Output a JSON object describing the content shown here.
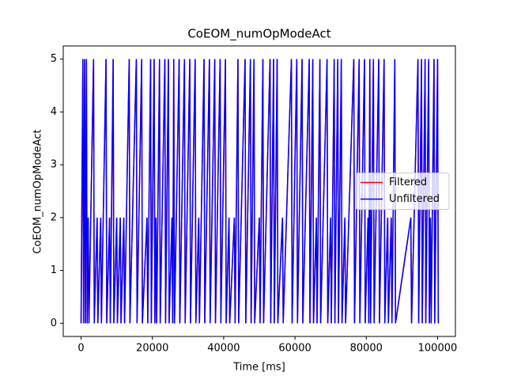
{
  "chart_data": {
    "type": "line",
    "title": "CoEOM_numOpModeAct",
    "x_label": "Time [ms]",
    "y_label": "CoEOM_numOpModeAct",
    "x": [
      0,
      500,
      700,
      1000,
      1200,
      1500,
      1700,
      2000,
      2200,
      3500,
      3700,
      4500,
      4700,
      5500,
      5700,
      7000,
      7200,
      8000,
      8200,
      9000,
      9200,
      10000,
      10200,
      11000,
      11200,
      12000,
      12200,
      13500,
      13700,
      15500,
      15700,
      17000,
      17200,
      18500,
      18700,
      19500,
      19700,
      20500,
      20700,
      21000,
      21200,
      22000,
      22200,
      23500,
      23700,
      24500,
      24700,
      25500,
      25700,
      26000,
      26200,
      27500,
      27700,
      29000,
      29200,
      30500,
      30700,
      32000,
      32200,
      33000,
      33200,
      34500,
      34700,
      36000,
      36200,
      37500,
      37700,
      39000,
      39200,
      40500,
      40700,
      41500,
      41700,
      43000,
      43200,
      44000,
      44200,
      46000,
      46200,
      47500,
      47700,
      48500,
      48700,
      50000,
      50200,
      51000,
      51200,
      53000,
      53200,
      54000,
      54200,
      55000,
      55200,
      56500,
      56700,
      59000,
      59200,
      60500,
      60700,
      62000,
      62200,
      64000,
      64200,
      65000,
      65200,
      66000,
      66200,
      67000,
      67200,
      69000,
      69200,
      70000,
      70200,
      71000,
      71200,
      72000,
      72200,
      73000,
      73200,
      74000,
      74200,
      76500,
      76700,
      78000,
      78200,
      79500,
      79700,
      80500,
      80700,
      81000,
      81200,
      82000,
      82200,
      83500,
      83700,
      85000,
      85200,
      86000,
      86200,
      87000,
      87200,
      88000,
      88200,
      92500,
      92700,
      94500,
      94700,
      95500,
      95700,
      96500,
      96700,
      97500,
      97700,
      98000,
      98200,
      99000,
      99200,
      100000,
      100200
    ],
    "series": [
      {
        "name": "Filtered",
        "color": "#ff0000",
        "values": [
          0,
          5,
          0,
          5,
          0,
          5,
          0,
          2,
          0,
          5,
          0,
          2,
          0,
          2,
          0,
          5,
          0,
          2,
          0,
          5,
          0,
          2,
          0,
          2,
          0,
          2,
          0,
          5,
          0,
          5,
          0,
          5,
          0,
          2,
          0,
          5,
          0,
          5,
          0,
          2,
          0,
          5,
          0,
          5,
          0,
          5,
          0,
          2,
          0,
          5,
          0,
          5,
          0,
          5,
          0,
          5,
          0,
          5,
          0,
          2,
          0,
          5,
          0,
          5,
          0,
          5,
          0,
          5,
          0,
          5,
          0,
          2,
          0,
          2,
          0,
          5,
          0,
          5,
          0,
          5,
          0,
          5,
          0,
          2,
          0,
          5,
          0,
          5,
          0,
          5,
          0,
          5,
          0,
          2,
          0,
          5,
          0,
          5,
          0,
          5,
          0,
          5,
          0,
          5,
          0,
          2,
          0,
          5,
          0,
          5,
          0,
          2,
          0,
          5,
          0,
          5,
          0,
          5,
          0,
          2,
          0,
          5,
          0,
          5,
          0,
          5,
          0,
          2,
          0,
          5,
          0,
          5,
          0,
          5,
          0,
          5,
          0,
          2,
          0,
          2,
          0,
          5,
          0,
          2,
          0,
          5,
          0,
          5,
          0,
          5,
          0,
          5,
          0,
          2,
          0,
          5,
          0,
          5,
          0
        ]
      },
      {
        "name": "Unfiltered",
        "color": "#0000ff",
        "values": [
          0,
          5,
          0,
          5,
          0,
          5,
          0,
          2,
          0,
          5,
          0,
          2,
          0,
          2,
          0,
          5,
          0,
          2,
          0,
          5,
          0,
          2,
          0,
          2,
          0,
          2,
          0,
          5,
          0,
          5,
          0,
          5,
          0,
          2,
          0,
          5,
          0,
          5,
          0,
          2,
          0,
          5,
          0,
          5,
          0,
          5,
          0,
          2,
          0,
          5,
          0,
          5,
          0,
          5,
          0,
          5,
          0,
          5,
          0,
          2,
          0,
          5,
          0,
          5,
          0,
          5,
          0,
          5,
          0,
          5,
          0,
          2,
          0,
          2,
          0,
          5,
          0,
          5,
          0,
          5,
          0,
          5,
          0,
          2,
          0,
          5,
          0,
          5,
          0,
          5,
          0,
          5,
          0,
          2,
          0,
          5,
          0,
          5,
          0,
          5,
          0,
          5,
          0,
          5,
          0,
          2,
          0,
          5,
          0,
          5,
          0,
          2,
          0,
          5,
          0,
          5,
          0,
          5,
          0,
          2,
          0,
          5,
          0,
          5,
          0,
          5,
          0,
          2,
          0,
          5,
          0,
          5,
          0,
          5,
          0,
          5,
          0,
          2,
          0,
          2,
          0,
          5,
          0,
          2,
          0,
          5,
          0,
          5,
          0,
          5,
          0,
          5,
          0,
          2,
          0,
          5,
          0,
          5,
          0
        ]
      }
    ],
    "xlim": [
      -5000,
      105000
    ],
    "xticks": [
      0,
      20000,
      40000,
      60000,
      80000,
      100000
    ],
    "ylim": [
      -0.25,
      5.25
    ],
    "yticks": [
      0,
      1,
      2,
      3,
      4,
      5
    ],
    "grid": false,
    "legend": "center right"
  }
}
